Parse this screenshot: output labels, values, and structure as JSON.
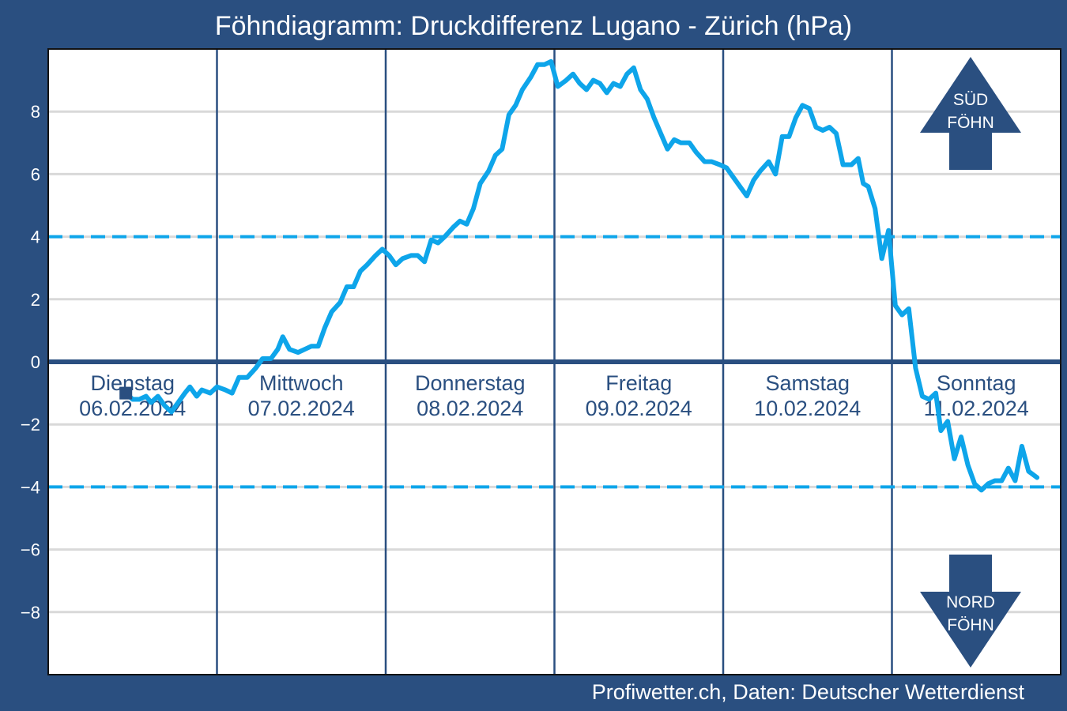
{
  "title": "Föhndiagramm: Druckdifferenz Lugano - Zürich (hPa)",
  "credit": "Profiwetter.ch, Daten: Deutscher Wetterdienst",
  "colors": {
    "background": "#2a4f80",
    "plot_background": "#ffffff",
    "series": "#0ea5ea",
    "threshold": "#0ea5ea",
    "zero_line": "#2a4f80",
    "grid": "#d9d9d9",
    "day_separator": "#2a4f80"
  },
  "arrows": {
    "south": {
      "line1": "SÜD",
      "line2": "FÖHN"
    },
    "north": {
      "line1": "NORD",
      "line2": "FÖHN"
    }
  },
  "chart_data": {
    "type": "line",
    "title": "Föhndiagramm: Druckdifferenz Lugano - Zürich (hPa)",
    "xlabel": "",
    "ylabel": "",
    "ylim": [
      -10,
      10
    ],
    "xlim": [
      0,
      6
    ],
    "yticks": [
      -8,
      -6,
      -4,
      -2,
      0,
      2,
      4,
      6,
      8
    ],
    "ytick_labels": [
      "−8",
      "−6",
      "−4",
      "−2",
      "0",
      "2",
      "4",
      "6",
      "8"
    ],
    "grid": true,
    "thresholds": [
      4,
      -4
    ],
    "days": [
      {
        "name": "Dienstag",
        "date": "06.02.2024"
      },
      {
        "name": "Mittwoch",
        "date": "07.02.2024"
      },
      {
        "name": "Donnerstag",
        "date": "08.02.2024"
      },
      {
        "name": "Freitag",
        "date": "09.02.2024"
      },
      {
        "name": "Samstag",
        "date": "10.02.2024"
      },
      {
        "name": "Sonntag",
        "date": "11.02.2024"
      }
    ],
    "x_unit": "days since 06.02.2024 00:00",
    "series": [
      {
        "name": "",
        "points": [
          [
            0.46,
            -1.0
          ],
          [
            0.5,
            -1.2
          ],
          [
            0.54,
            -1.2
          ],
          [
            0.58,
            -1.1
          ],
          [
            0.61,
            -1.3
          ],
          [
            0.65,
            -1.1
          ],
          [
            0.69,
            -1.4
          ],
          [
            0.73,
            -1.6
          ],
          [
            0.77,
            -1.3
          ],
          [
            0.81,
            -1.0
          ],
          [
            0.84,
            -0.8
          ],
          [
            0.88,
            -1.1
          ],
          [
            0.91,
            -0.9
          ],
          [
            0.96,
            -1.0
          ],
          [
            1.0,
            -0.8
          ],
          [
            1.05,
            -0.9
          ],
          [
            1.09,
            -1.0
          ],
          [
            1.13,
            -0.5
          ],
          [
            1.18,
            -0.5
          ],
          [
            1.23,
            -0.2
          ],
          [
            1.27,
            0.1
          ],
          [
            1.32,
            0.1
          ],
          [
            1.36,
            0.4
          ],
          [
            1.39,
            0.8
          ],
          [
            1.43,
            0.4
          ],
          [
            1.48,
            0.3
          ],
          [
            1.52,
            0.4
          ],
          [
            1.56,
            0.5
          ],
          [
            1.6,
            0.5
          ],
          [
            1.64,
            1.1
          ],
          [
            1.68,
            1.6
          ],
          [
            1.73,
            1.9
          ],
          [
            1.77,
            2.4
          ],
          [
            1.81,
            2.4
          ],
          [
            1.85,
            2.9
          ],
          [
            1.89,
            3.1
          ],
          [
            1.94,
            3.4
          ],
          [
            1.98,
            3.6
          ],
          [
            2.02,
            3.4
          ],
          [
            2.06,
            3.1
          ],
          [
            2.1,
            3.3
          ],
          [
            2.15,
            3.4
          ],
          [
            2.19,
            3.4
          ],
          [
            2.23,
            3.2
          ],
          [
            2.27,
            3.9
          ],
          [
            2.31,
            3.8
          ],
          [
            2.35,
            4.0
          ],
          [
            2.4,
            4.3
          ],
          [
            2.44,
            4.5
          ],
          [
            2.48,
            4.4
          ],
          [
            2.52,
            4.9
          ],
          [
            2.56,
            5.7
          ],
          [
            2.61,
            6.1
          ],
          [
            2.65,
            6.6
          ],
          [
            2.69,
            6.8
          ],
          [
            2.73,
            7.9
          ],
          [
            2.77,
            8.2
          ],
          [
            2.81,
            8.7
          ],
          [
            2.86,
            9.1
          ],
          [
            2.9,
            9.5
          ],
          [
            2.94,
            9.5
          ],
          [
            2.98,
            9.6
          ],
          [
            3.02,
            8.8
          ],
          [
            3.07,
            9.0
          ],
          [
            3.11,
            9.2
          ],
          [
            3.15,
            8.9
          ],
          [
            3.19,
            8.7
          ],
          [
            3.23,
            9.0
          ],
          [
            3.27,
            8.9
          ],
          [
            3.31,
            8.6
          ],
          [
            3.35,
            8.9
          ],
          [
            3.39,
            8.8
          ],
          [
            3.43,
            9.2
          ],
          [
            3.47,
            9.4
          ],
          [
            3.51,
            8.7
          ],
          [
            3.55,
            8.4
          ],
          [
            3.59,
            7.8
          ],
          [
            3.63,
            7.3
          ],
          [
            3.67,
            6.8
          ],
          [
            3.71,
            7.1
          ],
          [
            3.75,
            7.0
          ],
          [
            3.8,
            7.0
          ],
          [
            3.84,
            6.7
          ],
          [
            3.89,
            6.4
          ],
          [
            3.93,
            6.4
          ],
          [
            3.98,
            6.3
          ],
          [
            4.02,
            6.2
          ],
          [
            4.06,
            5.9
          ],
          [
            4.1,
            5.6
          ],
          [
            4.14,
            5.3
          ],
          [
            4.18,
            5.8
          ],
          [
            4.22,
            6.1
          ],
          [
            4.27,
            6.4
          ],
          [
            4.31,
            6.0
          ],
          [
            4.35,
            7.2
          ],
          [
            4.39,
            7.2
          ],
          [
            4.43,
            7.8
          ],
          [
            4.47,
            8.2
          ],
          [
            4.51,
            8.1
          ],
          [
            4.55,
            7.5
          ],
          [
            4.59,
            7.4
          ],
          [
            4.63,
            7.5
          ],
          [
            4.67,
            7.3
          ],
          [
            4.71,
            6.3
          ],
          [
            4.76,
            6.3
          ],
          [
            4.8,
            6.5
          ],
          [
            4.83,
            5.7
          ],
          [
            4.86,
            5.6
          ],
          [
            4.9,
            4.9
          ],
          [
            4.94,
            3.3
          ],
          [
            4.98,
            4.2
          ],
          [
            5.02,
            1.8
          ],
          [
            5.06,
            1.5
          ],
          [
            5.1,
            1.7
          ],
          [
            5.14,
            -0.2
          ],
          [
            5.18,
            -1.1
          ],
          [
            5.22,
            -1.2
          ],
          [
            5.26,
            -1.0
          ],
          [
            5.29,
            -2.2
          ],
          [
            5.33,
            -1.9
          ],
          [
            5.37,
            -3.1
          ],
          [
            5.41,
            -2.4
          ],
          [
            5.45,
            -3.3
          ],
          [
            5.49,
            -3.9
          ],
          [
            5.53,
            -4.1
          ],
          [
            5.57,
            -3.9
          ],
          [
            5.61,
            -3.8
          ],
          [
            5.65,
            -3.8
          ],
          [
            5.69,
            -3.4
          ],
          [
            5.73,
            -3.8
          ],
          [
            5.77,
            -2.7
          ],
          [
            5.81,
            -3.5
          ],
          [
            5.86,
            -3.7
          ]
        ]
      }
    ]
  }
}
